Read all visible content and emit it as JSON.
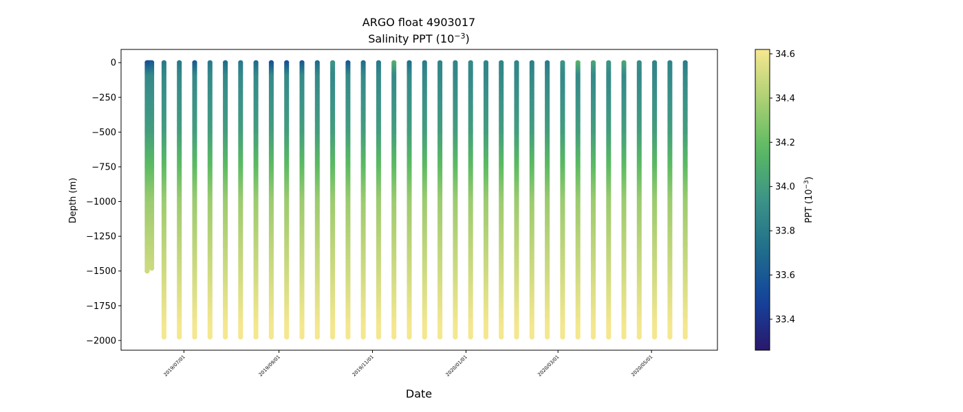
{
  "chart_data": {
    "type": "scatter",
    "title_line1": "ARGO float 4903017",
    "title_line2_main": "Salinity PPT (10",
    "title_line2_sup": "−3",
    "title_line2_end": ")",
    "xlabel": "Date",
    "ylabel": "Depth (m)",
    "xlim": [
      "2019-05-21",
      "2020-06-13"
    ],
    "ylim": [
      -2070,
      95
    ],
    "x_ticks": [
      "2019/07/01",
      "2019/09/01",
      "2019/11/01",
      "2020/01/01",
      "2020/03/01",
      "2020/05/01"
    ],
    "y_ticks": [
      0,
      -250,
      -500,
      -750,
      -1000,
      -1250,
      -1500,
      -1750,
      -2000
    ],
    "y_tick_labels": [
      "0",
      "−250",
      "−500",
      "−750",
      "−1000",
      "−1250",
      "−1500",
      "−1750",
      "−2000"
    ],
    "colorbar": {
      "label_main": "PPT (10",
      "label_sup": "−3",
      "label_end": ")",
      "min": 33.26,
      "max": 34.62,
      "ticks": [
        33.4,
        33.6,
        33.8,
        34.0,
        34.2,
        34.4,
        34.6
      ],
      "tick_labels": [
        "33.4",
        "33.6",
        "33.8",
        "34.0",
        "34.2",
        "34.4",
        "34.6"
      ],
      "colormap": [
        "#2a186c",
        "#14439c",
        "#206e8b",
        "#3c9387",
        "#5aba62",
        "#abcf73",
        "#f7e890"
      ]
    },
    "profiles": [
      {
        "date": "2019-06-07",
        "max_depth": -1500,
        "top_salinity": 33.58,
        "shallow": true
      },
      {
        "date": "2019-06-08",
        "max_depth": -980,
        "top_salinity": 33.56,
        "shallow": true
      },
      {
        "date": "2019-06-09",
        "max_depth": -200,
        "top_salinity": 33.55,
        "shallow": true
      },
      {
        "date": "2019-06-10",
        "max_depth": -1480,
        "top_salinity": 33.6,
        "shallow": true
      },
      {
        "date": "2019-06-18",
        "max_depth": -1975,
        "top_salinity": 33.78
      },
      {
        "date": "2019-06-28",
        "max_depth": -1975,
        "top_salinity": 33.78
      },
      {
        "date": "2019-07-08",
        "max_depth": -1975,
        "top_salinity": 33.6
      },
      {
        "date": "2019-07-18",
        "max_depth": -1975,
        "top_salinity": 33.78
      },
      {
        "date": "2019-07-28",
        "max_depth": -1975,
        "top_salinity": 33.7
      },
      {
        "date": "2019-08-07",
        "max_depth": -1975,
        "top_salinity": 33.78
      },
      {
        "date": "2019-08-17",
        "max_depth": -1975,
        "top_salinity": 33.7
      },
      {
        "date": "2019-08-27",
        "max_depth": -1975,
        "top_salinity": 33.55
      },
      {
        "date": "2019-09-06",
        "max_depth": -1975,
        "top_salinity": 33.55
      },
      {
        "date": "2019-09-16",
        "max_depth": -1975,
        "top_salinity": 33.6
      },
      {
        "date": "2019-09-26",
        "max_depth": -1975,
        "top_salinity": 33.7
      },
      {
        "date": "2019-10-06",
        "max_depth": -1975,
        "top_salinity": 33.95
      },
      {
        "date": "2019-10-16",
        "max_depth": -1975,
        "top_salinity": 33.6
      },
      {
        "date": "2019-10-26",
        "max_depth": -1975,
        "top_salinity": 33.72
      },
      {
        "date": "2019-11-05",
        "max_depth": -1975,
        "top_salinity": 33.78
      },
      {
        "date": "2019-11-15",
        "max_depth": -1975,
        "top_salinity": 34.1
      },
      {
        "date": "2019-11-25",
        "max_depth": -1975,
        "top_salinity": 33.72
      },
      {
        "date": "2019-12-05",
        "max_depth": -1975,
        "top_salinity": 33.8
      },
      {
        "date": "2019-12-15",
        "max_depth": -1975,
        "top_salinity": 33.85
      },
      {
        "date": "2019-12-25",
        "max_depth": -1975,
        "top_salinity": 33.85
      },
      {
        "date": "2020-01-04",
        "max_depth": -1975,
        "top_salinity": 33.88
      },
      {
        "date": "2020-01-14",
        "max_depth": -1975,
        "top_salinity": 33.85
      },
      {
        "date": "2020-01-24",
        "max_depth": -1975,
        "top_salinity": 33.85
      },
      {
        "date": "2020-02-03",
        "max_depth": -1975,
        "top_salinity": 33.85
      },
      {
        "date": "2020-02-13",
        "max_depth": -1975,
        "top_salinity": 33.82
      },
      {
        "date": "2020-02-23",
        "max_depth": -1975,
        "top_salinity": 33.8
      },
      {
        "date": "2020-03-04",
        "max_depth": -1975,
        "top_salinity": 33.95
      },
      {
        "date": "2020-03-14",
        "max_depth": -1975,
        "top_salinity": 34.12
      },
      {
        "date": "2020-03-24",
        "max_depth": -1975,
        "top_salinity": 34.05
      },
      {
        "date": "2020-04-03",
        "max_depth": -1975,
        "top_salinity": 33.95
      },
      {
        "date": "2020-04-13",
        "max_depth": -1975,
        "top_salinity": 34.05
      },
      {
        "date": "2020-04-23",
        "max_depth": -1975,
        "top_salinity": 33.9
      },
      {
        "date": "2020-05-03",
        "max_depth": -1975,
        "top_salinity": 33.85
      },
      {
        "date": "2020-05-13",
        "max_depth": -1975,
        "top_salinity": 33.85
      },
      {
        "date": "2020-05-23",
        "max_depth": -1975,
        "top_salinity": 33.8
      }
    ]
  }
}
